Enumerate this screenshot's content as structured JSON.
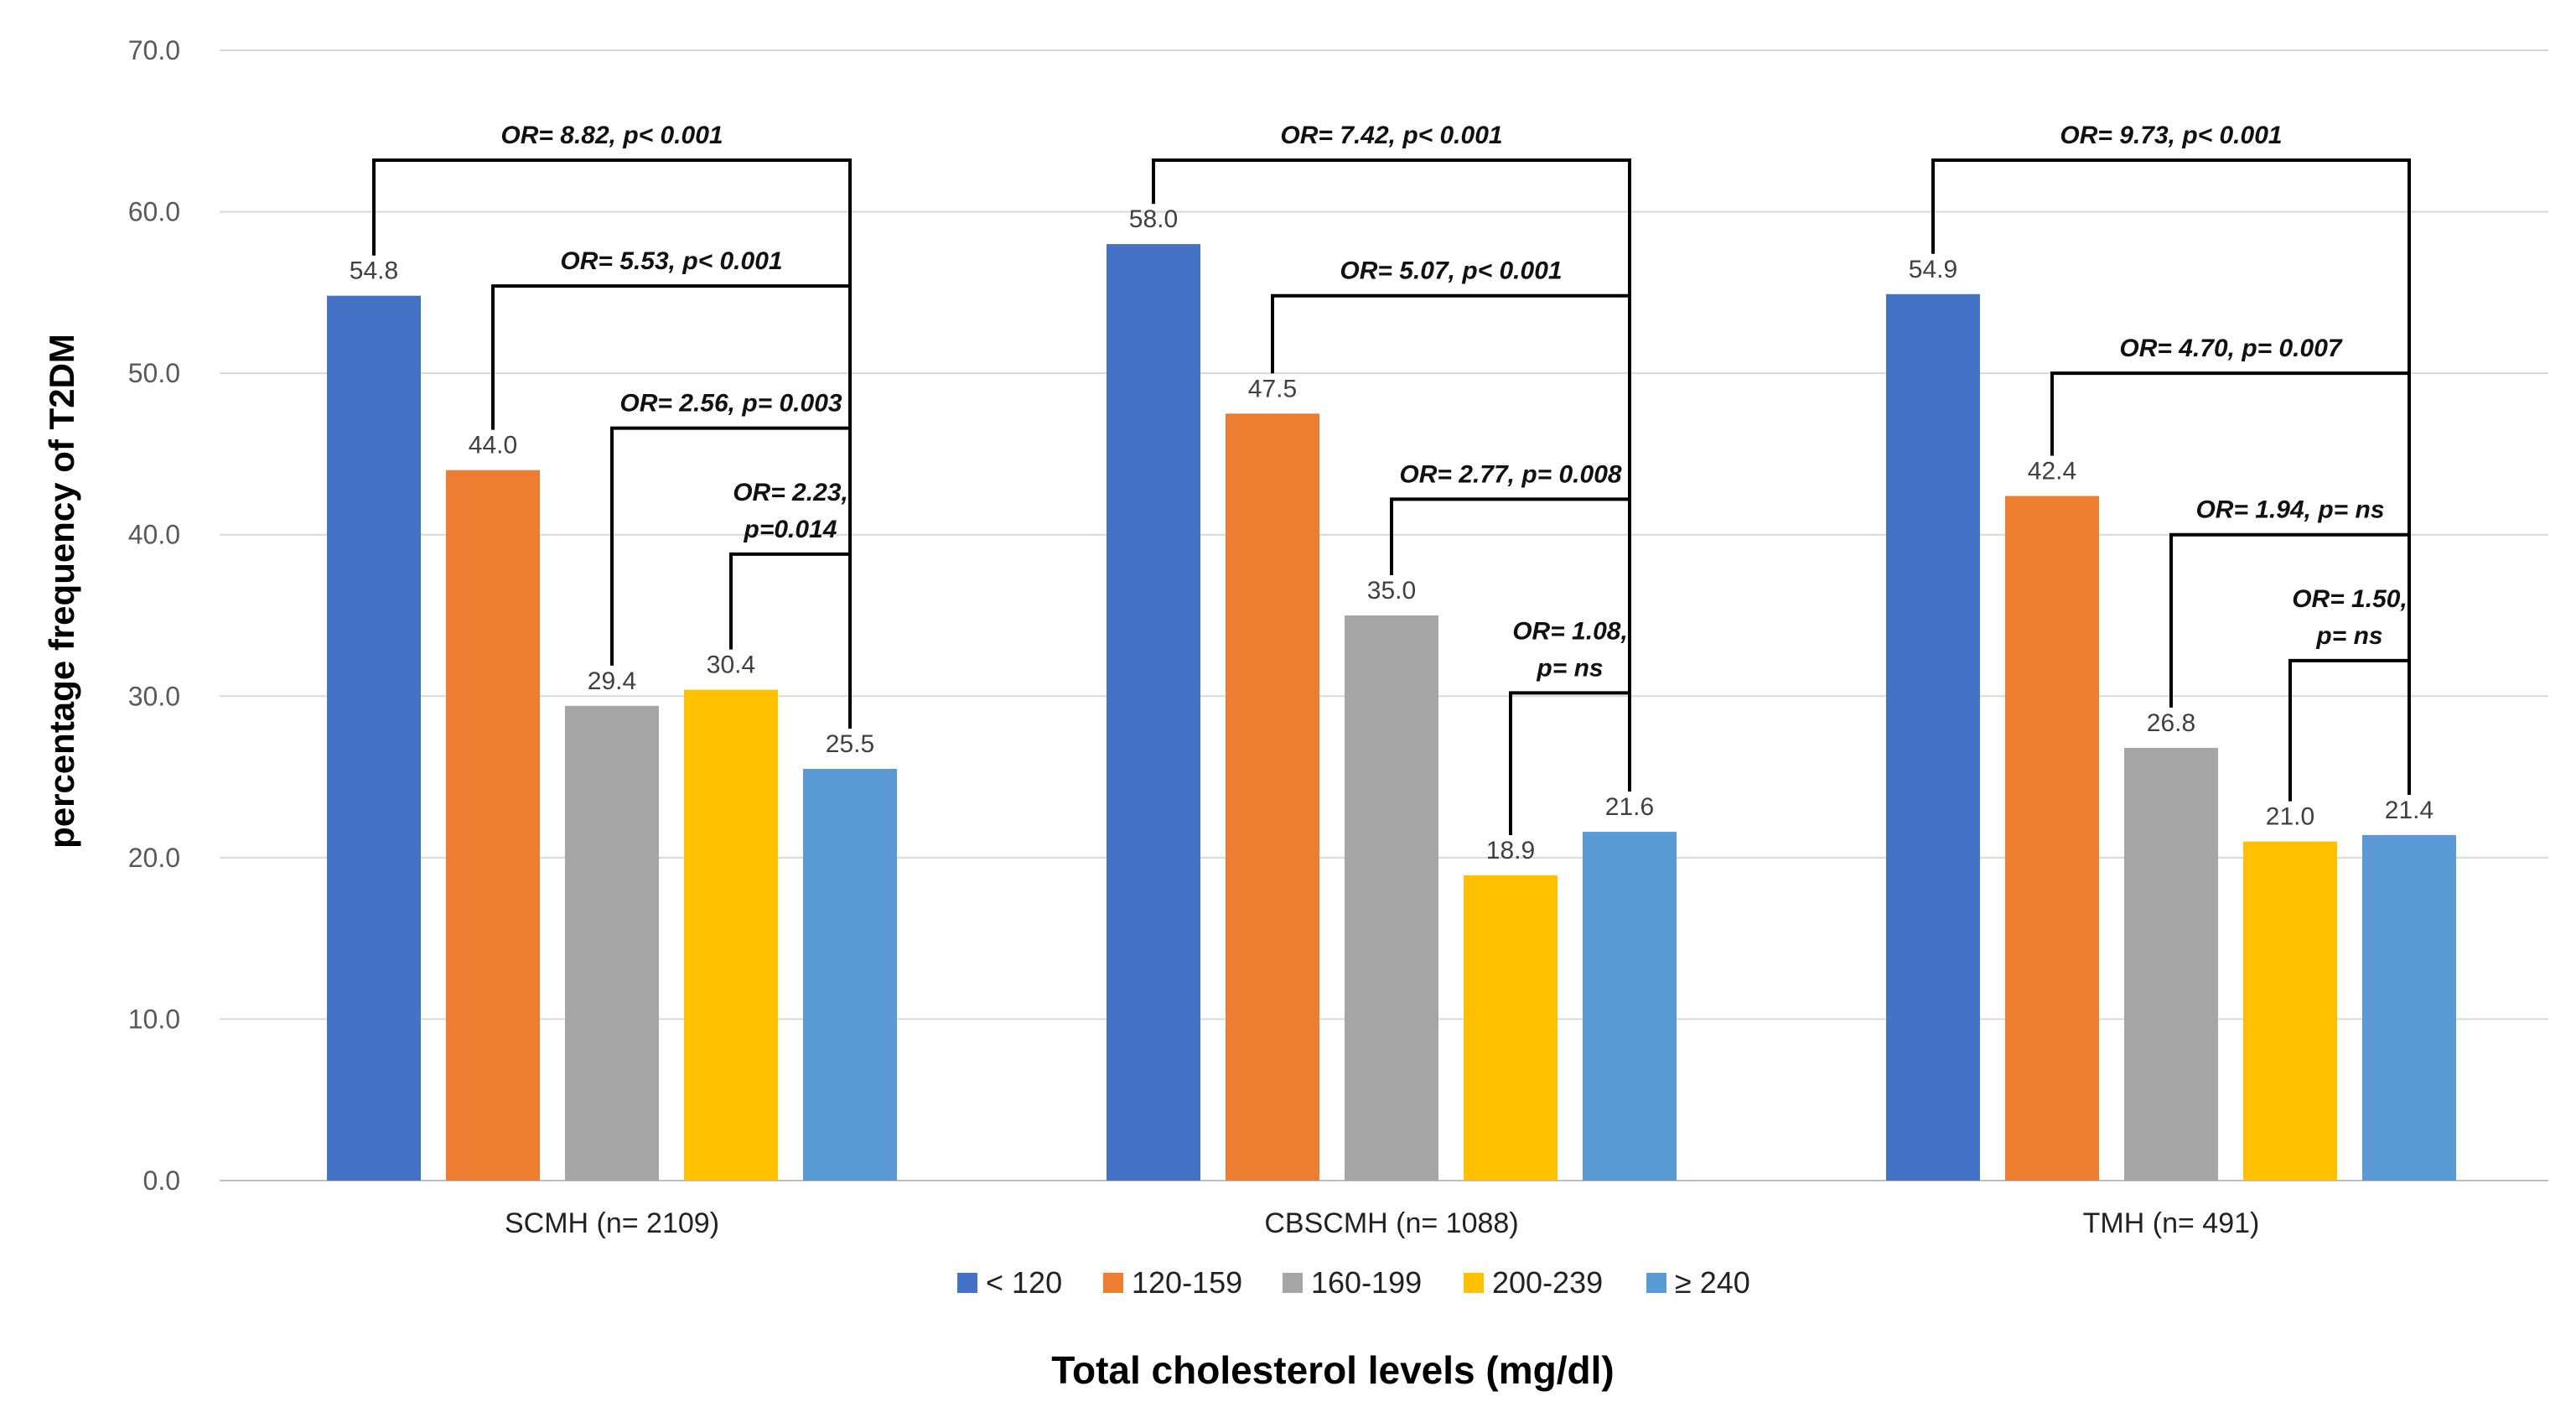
{
  "chart_data": {
    "type": "bar",
    "title": "",
    "xlabel": "Total cholesterol levels (mg/dl)",
    "ylabel": "percentage frequency of T2DM",
    "ylim": [
      0,
      70
    ],
    "yticks": [
      "0.0",
      "10.0",
      "20.0",
      "30.0",
      "40.0",
      "50.0",
      "60.0",
      "70.0"
    ],
    "grid": true,
    "legend_position": "bottom",
    "categories": [
      "SCMH (n= 2109)",
      "CBSCMH (n= 1088)",
      "TMH (n= 491)"
    ],
    "series": [
      {
        "name": "< 120",
        "color": "#4472C4",
        "values": [
          54.8,
          58.0,
          54.9
        ],
        "labels": [
          "54.8",
          "58.0",
          "54.9"
        ]
      },
      {
        "name": "120-159",
        "color": "#ED7D31",
        "values": [
          44.0,
          47.5,
          42.4
        ],
        "labels": [
          "44.0",
          "47.5",
          "42.4"
        ]
      },
      {
        "name": "160-199",
        "color": "#A5A5A5",
        "values": [
          29.4,
          35.0,
          26.8
        ],
        "labels": [
          "29.4",
          "35.0",
          "26.8"
        ]
      },
      {
        "name": "200-239",
        "color": "#FFC000",
        "values": [
          30.4,
          18.9,
          21.0
        ],
        "labels": [
          "30.4",
          "18.9",
          "21.0"
        ]
      },
      {
        "name": "≥ 240",
        "color": "#5B9BD5",
        "values": [
          25.5,
          21.6,
          21.4
        ],
        "labels": [
          "25.5",
          "21.6",
          "21.4"
        ]
      }
    ],
    "annotations": [
      {
        "group": 0,
        "from_series": 0,
        "to_series": 4,
        "level": 63.2,
        "lines": [
          "OR= 8.82, p< 0.001"
        ]
      },
      {
        "group": 0,
        "from_series": 1,
        "to_series": 4,
        "level": 55.4,
        "lines": [
          "OR= 5.53, p< 0.001"
        ]
      },
      {
        "group": 0,
        "from_series": 2,
        "to_series": 4,
        "level": 46.6,
        "lines": [
          "OR= 2.56, p= 0.003"
        ]
      },
      {
        "group": 0,
        "from_series": 3,
        "to_series": 4,
        "level": 38.8,
        "lines": [
          "OR= 2.23,",
          "p=0.014"
        ]
      },
      {
        "group": 1,
        "from_series": 0,
        "to_series": 4,
        "level": 63.2,
        "lines": [
          "OR= 7.42, p< 0.001"
        ]
      },
      {
        "group": 1,
        "from_series": 1,
        "to_series": 4,
        "level": 54.8,
        "lines": [
          "OR= 5.07, p< 0.001"
        ]
      },
      {
        "group": 1,
        "from_series": 2,
        "to_series": 4,
        "level": 42.2,
        "lines": [
          "OR= 2.77, p= 0.008"
        ]
      },
      {
        "group": 1,
        "from_series": 3,
        "to_series": 4,
        "level": 30.2,
        "lines": [
          "OR= 1.08,",
          "p= ns"
        ]
      },
      {
        "group": 2,
        "from_series": 0,
        "to_series": 4,
        "level": 63.2,
        "lines": [
          "OR= 9.73, p< 0.001"
        ]
      },
      {
        "group": 2,
        "from_series": 1,
        "to_series": 4,
        "level": 50.0,
        "lines": [
          "OR= 4.70, p= 0.007"
        ]
      },
      {
        "group": 2,
        "from_series": 2,
        "to_series": 4,
        "level": 40.0,
        "lines": [
          "OR= 1.94, p= ns"
        ]
      },
      {
        "group": 2,
        "from_series": 3,
        "to_series": 4,
        "level": 32.2,
        "lines": [
          "OR= 1.50,",
          "p= ns"
        ]
      }
    ]
  }
}
